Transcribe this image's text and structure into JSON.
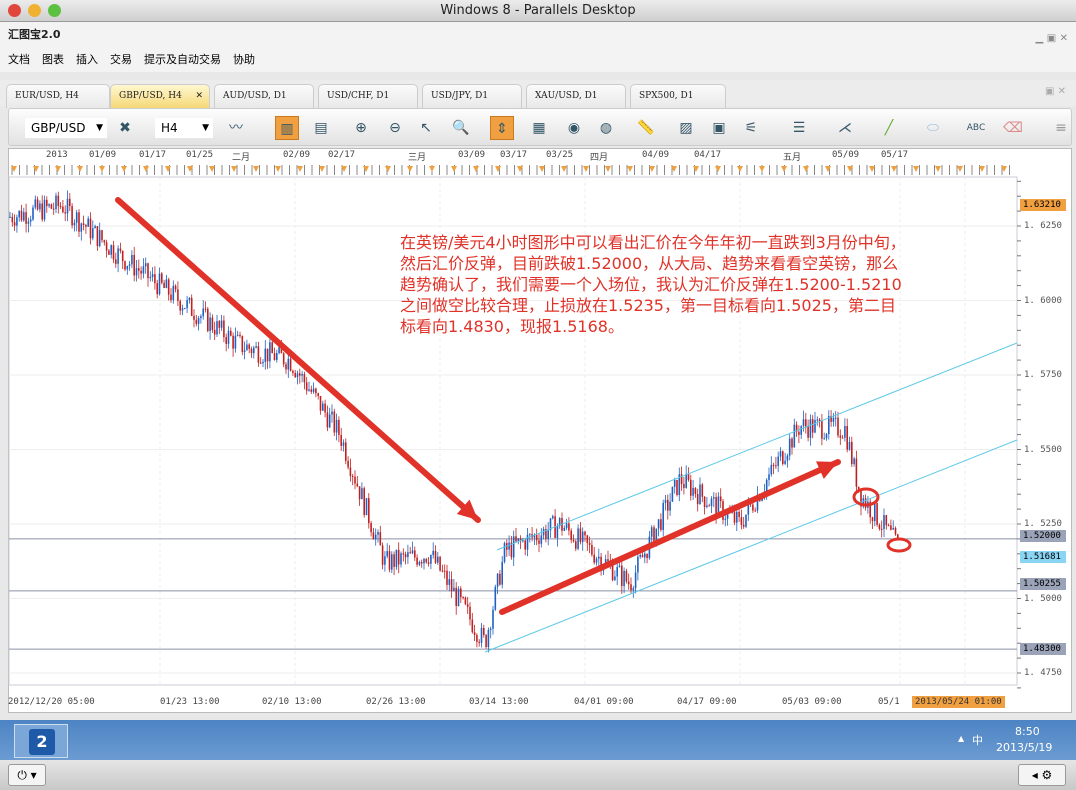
{
  "window": {
    "title": "Windows 8 - Parallels Desktop"
  },
  "app": {
    "title": "汇图宝2.0"
  },
  "menu": [
    "文档",
    "图表",
    "插入",
    "交易",
    "提示及自动交易",
    "协助"
  ],
  "tabs": [
    {
      "label": "EUR/USD, H4"
    },
    {
      "label": "GBP/USD, H4",
      "active": true
    },
    {
      "label": "AUD/USD, D1"
    },
    {
      "label": "USD/CHF, D1"
    },
    {
      "label": "USD/JPY, D1"
    },
    {
      "label": "XAU/USD, D1"
    },
    {
      "label": "SPX500, D1"
    }
  ],
  "toolbar": {
    "symbol": "GBP/USD",
    "timeframe": "H4"
  },
  "colors": {
    "accent": "#f0a040",
    "bull": "#2060c0",
    "bear": "#c02020",
    "channel": "#5bc8e8",
    "annotation": "#e03228"
  },
  "chart_data": {
    "type": "candlestick",
    "symbol": "GBP/USD",
    "timeframe": "H4",
    "top_date_labels": [
      "2013",
      "01/09",
      "01/17",
      "01/25",
      "二月",
      "02/09",
      "02/17",
      "三月",
      "03/09",
      "03/17",
      "03/25",
      "四月",
      "04/09",
      "04/17",
      "五月",
      "05/09",
      "05/17"
    ],
    "time_labels": [
      "2012/12/20 05:00",
      "01/23 13:00",
      "02/10 13:00",
      "02/26 13:00",
      "03/14 13:00",
      "04/01 09:00",
      "04/17 09:00",
      "05/03 09:00",
      "05/1"
    ],
    "cursor_time": "2013/05/24 01:00",
    "price_ticks": [
      "1.6250",
      "1.6000",
      "1.5750",
      "1.5500",
      "1.5250",
      "1.5000",
      "1.4750"
    ],
    "ylim": [
      1.47,
      1.64
    ],
    "price_path": [
      [
        "2012/12/20",
        1.628
      ],
      [
        "01/02",
        1.632
      ],
      [
        "01/11",
        1.615
      ],
      [
        "01/31",
        1.585
      ],
      [
        "02/09",
        1.58
      ],
      [
        "02/17",
        1.555
      ],
      [
        "02/28",
        1.512
      ],
      [
        "03/05",
        1.515
      ],
      [
        "03/12",
        1.485
      ],
      [
        "03/15",
        1.516
      ],
      [
        "03/25",
        1.525
      ],
      [
        "04/05",
        1.505
      ],
      [
        "04/11",
        1.54
      ],
      [
        "04/24",
        1.525
      ],
      [
        "05/03",
        1.558
      ],
      [
        "05/09",
        1.557
      ],
      [
        "05/12",
        1.535
      ],
      [
        "05/18",
        1.5168
      ]
    ],
    "levels": [
      {
        "label": "1.63210",
        "value": 1.6321,
        "color": "#f0a040"
      },
      {
        "label": "1.52000",
        "value": 1.52,
        "color": "#9aa3b8"
      },
      {
        "label": "1.51681",
        "value": 1.51681,
        "color": "#8ad4f4"
      },
      {
        "label": "1.50255",
        "value": 1.50255,
        "color": "#9aa3b8"
      },
      {
        "label": "1.48300",
        "value": 1.483,
        "color": "#9aa3b8"
      }
    ],
    "annotation": "在英镑/美元4小时图形中可以看出汇价在今年年初一直跌到3月份中旬，然后汇价反弹，目前跌破1.52000，从大局、趋势来看看空英镑，那么趋势确认了，我们需要一个入场位，我认为汇价反弹在1.5200-1.5210之间做空比较合理，止损放在1.5235，第一目标看向1.5025，第二目标看向1.4830，现报1.5168。"
  },
  "taskbar": {
    "time": "8:50",
    "date": "2013/5/19",
    "ime": "中"
  }
}
